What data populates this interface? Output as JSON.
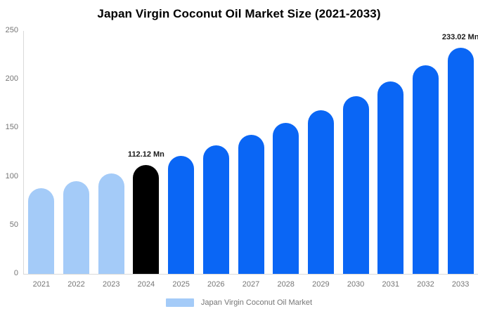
{
  "chart_data": {
    "type": "bar",
    "title": "Japan Virgin Coconut Oil Market Size (2021-2033)",
    "categories": [
      "2021",
      "2022",
      "2023",
      "2024",
      "2025",
      "2026",
      "2027",
      "2028",
      "2029",
      "2030",
      "2031",
      "2032",
      "2033"
    ],
    "values": [
      87.9,
      95.3,
      103.4,
      112.12,
      121.6,
      131.9,
      143.1,
      155.2,
      168.3,
      182.6,
      198.0,
      214.8,
      233.02
    ],
    "bar_color_keys": [
      "light",
      "light",
      "light",
      "black",
      "blue",
      "blue",
      "blue",
      "blue",
      "blue",
      "blue",
      "blue",
      "blue",
      "blue"
    ],
    "colors": {
      "light": "#A4CBF8",
      "blue": "#0A66F5",
      "black": "#000000",
      "axis": "#D9D9D9",
      "tick_label": "#757575",
      "value_label": "#1a1a1a"
    },
    "annotations": [
      {
        "index": 3,
        "text": "112.12 Mn"
      },
      {
        "index": 12,
        "text": "233.02 Mn"
      }
    ],
    "y_ticks": [
      0,
      50,
      100,
      150,
      200,
      250
    ],
    "ylim": [
      0,
      250
    ],
    "xlabel": "",
    "ylabel": "",
    "grid": false,
    "legend": {
      "label": "Japan Virgin Coconut Oil Market",
      "position": "bottom"
    }
  }
}
